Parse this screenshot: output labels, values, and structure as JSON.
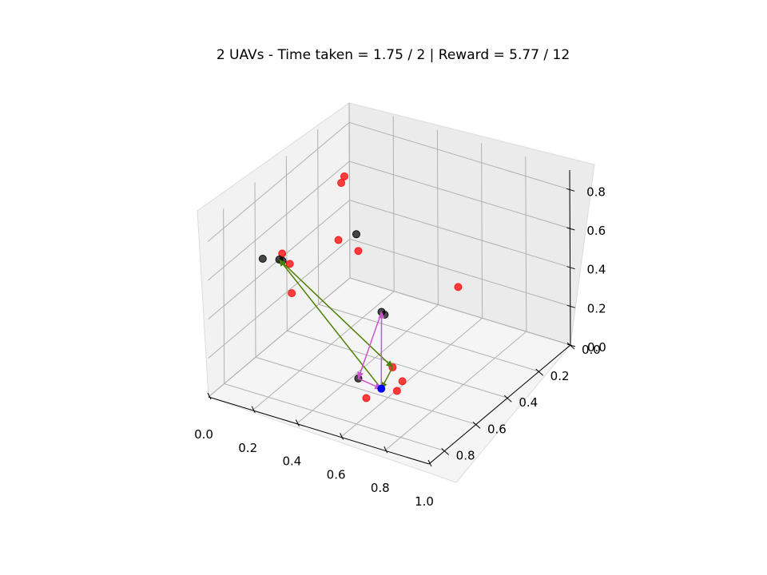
{
  "chart_data": {
    "type": "scatter",
    "projection": "3d",
    "title": "2 UAVs - Time taken = 1.75 / 2 | Reward = 5.77 / 12",
    "xlabel": "",
    "ylabel": "",
    "zlabel": "",
    "xlim": [
      0,
      1.0
    ],
    "ylim": [
      0,
      0.9
    ],
    "zlim": [
      0,
      0.9
    ],
    "grid": true,
    "x_ticks": [
      "0.0",
      "0.2",
      "0.4",
      "0.6",
      "0.8",
      "1.0"
    ],
    "y_ticks": [
      "0.0",
      "0.2",
      "0.4",
      "0.6",
      "0.8"
    ],
    "z_ticks": [
      "0.0",
      "0.2",
      "0.4",
      "0.6",
      "0.8"
    ],
    "colors": {
      "uav1_path": "#4d7f00",
      "uav2_path": "#cc55cc",
      "base": "#0000ff",
      "target": "#ff0000",
      "visited": "#000000"
    },
    "base_point": {
      "x": 0.62,
      "y": 0.67,
      "z": 0.1
    },
    "targets": [
      {
        "x": 0.12,
        "y": 0.22,
        "z": 0.68
      },
      {
        "x": 0.12,
        "y": 0.2,
        "z": 0.7
      },
      {
        "x": 0.02,
        "y": 0.1,
        "z": 0.27
      },
      {
        "x": 0.06,
        "y": 0.03,
        "z": 0.18
      },
      {
        "x": 0.52,
        "y": 0.04,
        "z": 0.16
      },
      {
        "x": 0.55,
        "y": 0.5,
        "z": 0.07
      },
      {
        "x": 0.53,
        "y": 0.64,
        "z": 0.0
      },
      {
        "x": 0.28,
        "y": 0.82,
        "z": 0.78
      },
      {
        "x": 0.3,
        "y": 0.8,
        "z": 0.72
      },
      {
        "x": 0.33,
        "y": 0.83,
        "z": 0.6
      },
      {
        "x": 0.63,
        "y": 0.55,
        "z": 0.06
      },
      {
        "x": 0.82,
        "y": 0.85,
        "z": 0.28
      }
    ],
    "visited_points": [
      {
        "x": 0.08,
        "y": 0.07,
        "z": 0.3
      },
      {
        "x": 0.3,
        "y": 0.2,
        "z": 0.05
      },
      {
        "x": 0.12,
        "y": 0.72,
        "z": 0.63
      },
      {
        "x": 0.31,
        "y": 0.86,
        "z": 0.78
      },
      {
        "x": 0.31,
        "y": 0.88,
        "z": 0.8
      },
      {
        "x": 0.48,
        "y": 0.62,
        "z": 0.07
      },
      {
        "x": 0.68,
        "y": 0.75,
        "z": 0.57
      }
    ],
    "series": [
      {
        "route": [
          {
            "x": 0.62,
            "y": 0.67,
            "z": 0.1
          },
          {
            "x": 0.31,
            "y": 0.88,
            "z": 0.8
          },
          {
            "x": 0.55,
            "y": 0.5,
            "z": 0.07
          },
          {
            "x": 0.62,
            "y": 0.67,
            "z": 0.1
          }
        ]
      },
      {
        "route": [
          {
            "x": 0.62,
            "y": 0.67,
            "z": 0.1
          },
          {
            "x": 0.68,
            "y": 0.75,
            "z": 0.57
          },
          {
            "x": 0.48,
            "y": 0.62,
            "z": 0.07
          },
          {
            "x": 0.62,
            "y": 0.67,
            "z": 0.1
          }
        ]
      }
    ]
  }
}
